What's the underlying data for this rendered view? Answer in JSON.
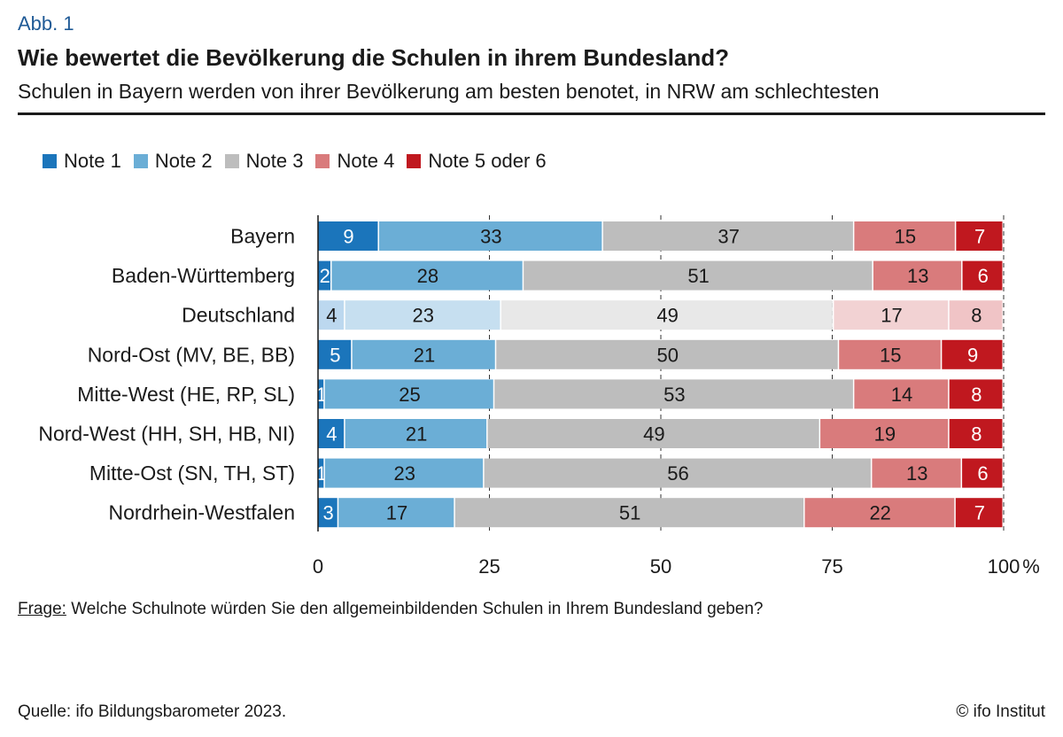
{
  "header": {
    "figure_label": "Abb. 1",
    "title": "Wie bewertet die Bevölkerung die Schulen in ihrem Bundesland?",
    "subtitle": "Schulen in Bayern werden von ihrer Bevölkerung am besten benotet, in NRW am schlechtesten"
  },
  "footer": {
    "question_label": "Frage:",
    "question_text": "Welche Schulnote würden Sie den allgemeinbildenden Schulen in Ihrem Bundesland geben?",
    "source": "Quelle: ifo Bildungsbarometer 2023.",
    "copyright": "© ifo Institut"
  },
  "chart_data": {
    "type": "bar",
    "orientation": "horizontal",
    "stacked": true,
    "categories": [
      "Bayern",
      "Baden-Württemberg",
      "Deutschland",
      "Nord-Ost (MV, BE, BB)",
      "Mitte-West (HE, RP, SL)",
      "Nord-West (HH, SH, HB, NI)",
      "Mitte-Ost (SN, TH, ST)",
      "Nordrhein-Westfalen"
    ],
    "highlighted_category": "Deutschland",
    "series": [
      {
        "name": "Note 1",
        "color": "#1b75bb",
        "faded_color": "#bcd8ef",
        "values": [
          9,
          2,
          4,
          5,
          1,
          4,
          1,
          3
        ]
      },
      {
        "name": "Note 2",
        "color": "#6baed6",
        "faded_color": "#c6dff0",
        "values": [
          33,
          28,
          23,
          21,
          25,
          21,
          23,
          17
        ]
      },
      {
        "name": "Note 3",
        "color": "#bdbdbd",
        "faded_color": "#e8e8e8",
        "values": [
          37,
          51,
          49,
          50,
          53,
          49,
          56,
          51
        ]
      },
      {
        "name": "Note 4",
        "color": "#d97b7c",
        "faded_color": "#f2d2d3",
        "values": [
          15,
          13,
          17,
          15,
          14,
          19,
          13,
          22
        ]
      },
      {
        "name": "Note 5 oder 6",
        "color": "#c0181f",
        "faded_color": "#f0c4c6",
        "values": [
          7,
          6,
          8,
          9,
          8,
          8,
          6,
          7
        ]
      }
    ],
    "x_ticks": [
      "0",
      "25",
      "50",
      "75",
      "100"
    ],
    "x_unit": "%",
    "xlim": [
      0,
      100
    ],
    "grid": "dashed vertical gridlines at ticks",
    "legend_position": "top-left"
  }
}
